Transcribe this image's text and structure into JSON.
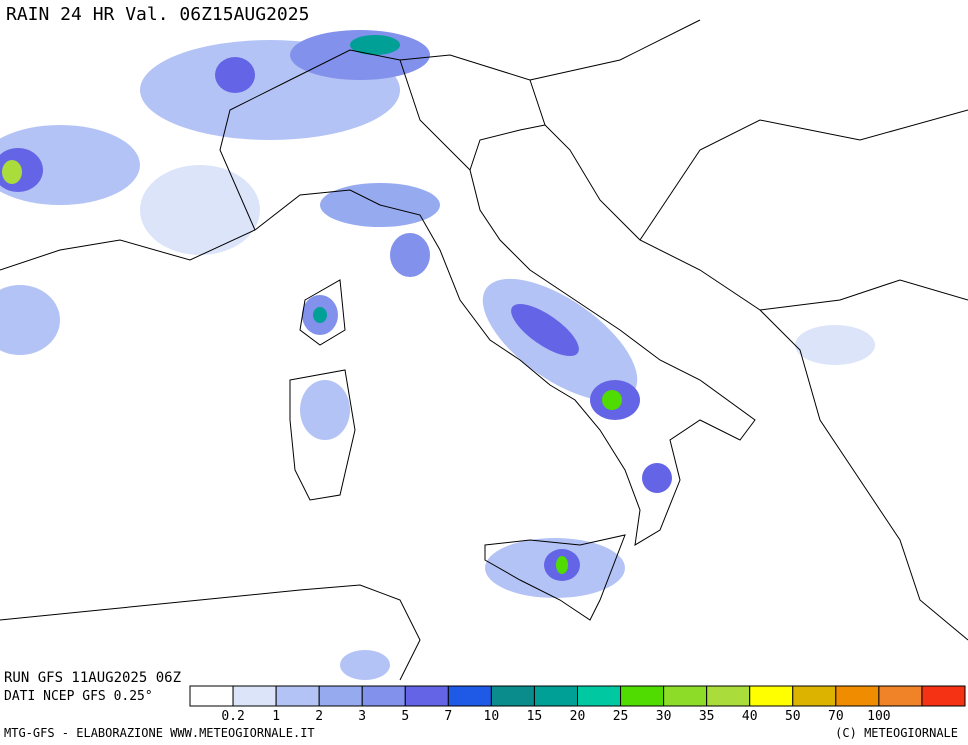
{
  "header": {
    "title": "RAIN 24 HR Val. 06Z15AUG2025"
  },
  "footer": {
    "run": "RUN GFS 11AUG2025 06Z",
    "source": "DATI NCEP GFS 0.25°",
    "credit": "MTG-GFS - ELABORAZIONE WWW.METEOGIORNALE.IT",
    "copyright": "(C) METEOGIORNALE"
  },
  "legend": {
    "colors": [
      "#ffffff",
      "#dce4fa",
      "#b4c3f5",
      "#96aaf0",
      "#8291eb",
      "#6464e6",
      "#1e5ae6",
      "#0a8c8c",
      "#00a096",
      "#00c8a0",
      "#50dc00",
      "#8cdc28",
      "#aadc3c",
      "#ffff00",
      "#dcb400",
      "#f08c00",
      "#f08228",
      "#f53214"
    ],
    "labels": [
      0.2,
      1,
      2,
      3,
      5,
      7,
      10,
      15,
      20,
      25,
      30,
      35,
      40,
      50,
      70,
      100
    ]
  }
}
